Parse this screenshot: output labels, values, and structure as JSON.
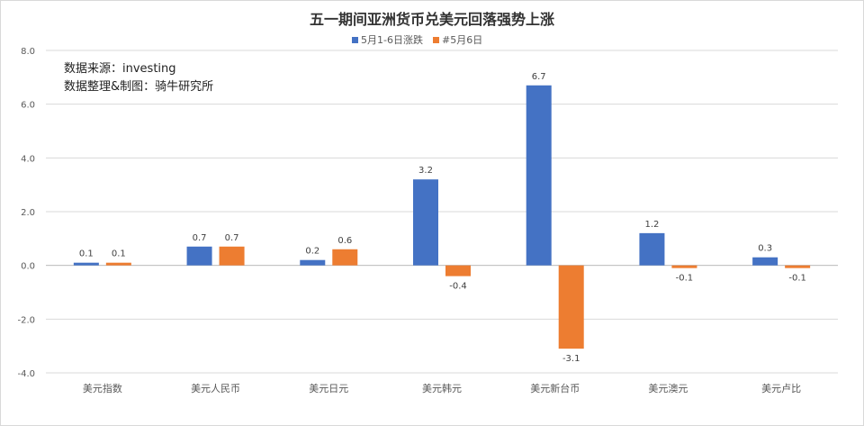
{
  "chart_data": {
    "type": "bar",
    "title": "五一期间亚洲货币兑美元回落强势上涨",
    "categories": [
      "美元指数",
      "美元人民币",
      "美元日元",
      "美元韩元",
      "美元新台币",
      "美元澳元",
      "美元卢比"
    ],
    "series": [
      {
        "name": "5月1-6日涨跌",
        "color": "#4472C4",
        "values": [
          0.1,
          0.7,
          0.2,
          3.2,
          6.7,
          1.2,
          0.3
        ]
      },
      {
        "name": "#5月6日",
        "color": "#ED7D31",
        "values": [
          0.1,
          0.7,
          0.6,
          -0.4,
          -3.1,
          -0.1,
          -0.1
        ]
      }
    ],
    "ylim": [
      -4.0,
      8.0
    ],
    "yticks": [
      "-4.0",
      "-2.0",
      "0.0",
      "2.0",
      "4.0",
      "6.0",
      "8.0"
    ],
    "grid": true,
    "legend_position": "top-center",
    "annotations": [
      "数据来源：investing",
      "数据整理&制图：骑牛研究所"
    ]
  }
}
